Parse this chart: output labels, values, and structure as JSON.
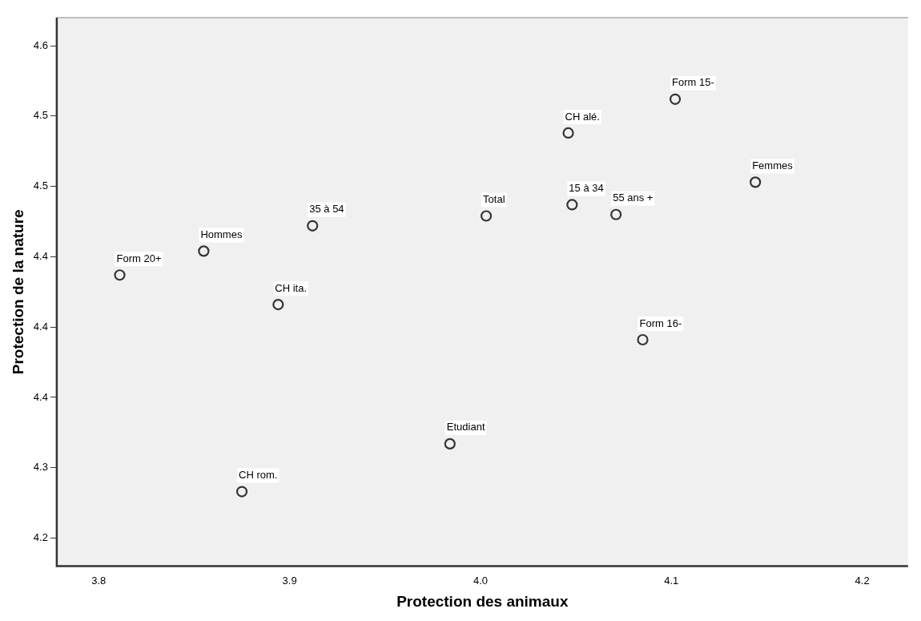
{
  "chart_data": {
    "type": "scatter",
    "xlabel": "Protection des animaux",
    "ylabel": "Protection de la nature",
    "x": [
      3.811,
      3.855,
      3.912,
      3.894,
      3.875,
      3.984,
      4.003,
      4.046,
      4.048,
      4.071,
      4.102,
      4.144,
      4.085
    ],
    "values": [
      4.437,
      4.454,
      4.472,
      4.416,
      4.283,
      4.317,
      4.479,
      4.538,
      4.487,
      4.48,
      4.562,
      4.503,
      4.391
    ],
    "color": "#333333",
    "marker": "circle",
    "grid": false,
    "legend": false,
    "xlim": [
      3.778,
      4.224
    ],
    "xticks": [
      {
        "value": 3.8,
        "label": "3.8"
      },
      {
        "value": 3.9,
        "label": "3.9"
      },
      {
        "value": 4.0,
        "label": "4.0"
      },
      {
        "value": 4.1,
        "label": "4.1"
      },
      {
        "value": 4.2,
        "label": "4.2"
      }
    ],
    "ylim": [
      4.23,
      4.62
    ],
    "yticks": [
      {
        "value": 4.25,
        "label": "4.2"
      },
      {
        "value": 4.3,
        "label": "4.3"
      },
      {
        "value": 4.35,
        "label": "4.4"
      },
      {
        "value": 4.4,
        "label": "4.4"
      },
      {
        "value": 4.45,
        "label": "4.4"
      },
      {
        "value": 4.5,
        "label": "4.5"
      },
      {
        "value": 4.55,
        "label": "4.5"
      },
      {
        "value": 4.6,
        "label": "4.6"
      }
    ],
    "annotations": [
      {
        "text": "Form 20+",
        "x": 3.811,
        "y": 4.437
      },
      {
        "text": "Hommes",
        "x": 3.855,
        "y": 4.454
      },
      {
        "text": "35 à 54",
        "x": 3.912,
        "y": 4.472
      },
      {
        "text": "CH ita.",
        "x": 3.894,
        "y": 4.416
      },
      {
        "text": "CH rom.",
        "x": 3.875,
        "y": 4.283
      },
      {
        "text": "Etudiant",
        "x": 3.984,
        "y": 4.317
      },
      {
        "text": "Total",
        "x": 4.003,
        "y": 4.479
      },
      {
        "text": "CH alé.",
        "x": 4.046,
        "y": 4.538
      },
      {
        "text": "15 à 34",
        "x": 4.048,
        "y": 4.487
      },
      {
        "text": "55 ans +",
        "x": 4.071,
        "y": 4.48
      },
      {
        "text": "Form 15-",
        "x": 4.102,
        "y": 4.562
      },
      {
        "text": "Femmes",
        "x": 4.144,
        "y": 4.503
      },
      {
        "text": "Form 16-",
        "x": 4.085,
        "y": 4.391
      }
    ]
  }
}
